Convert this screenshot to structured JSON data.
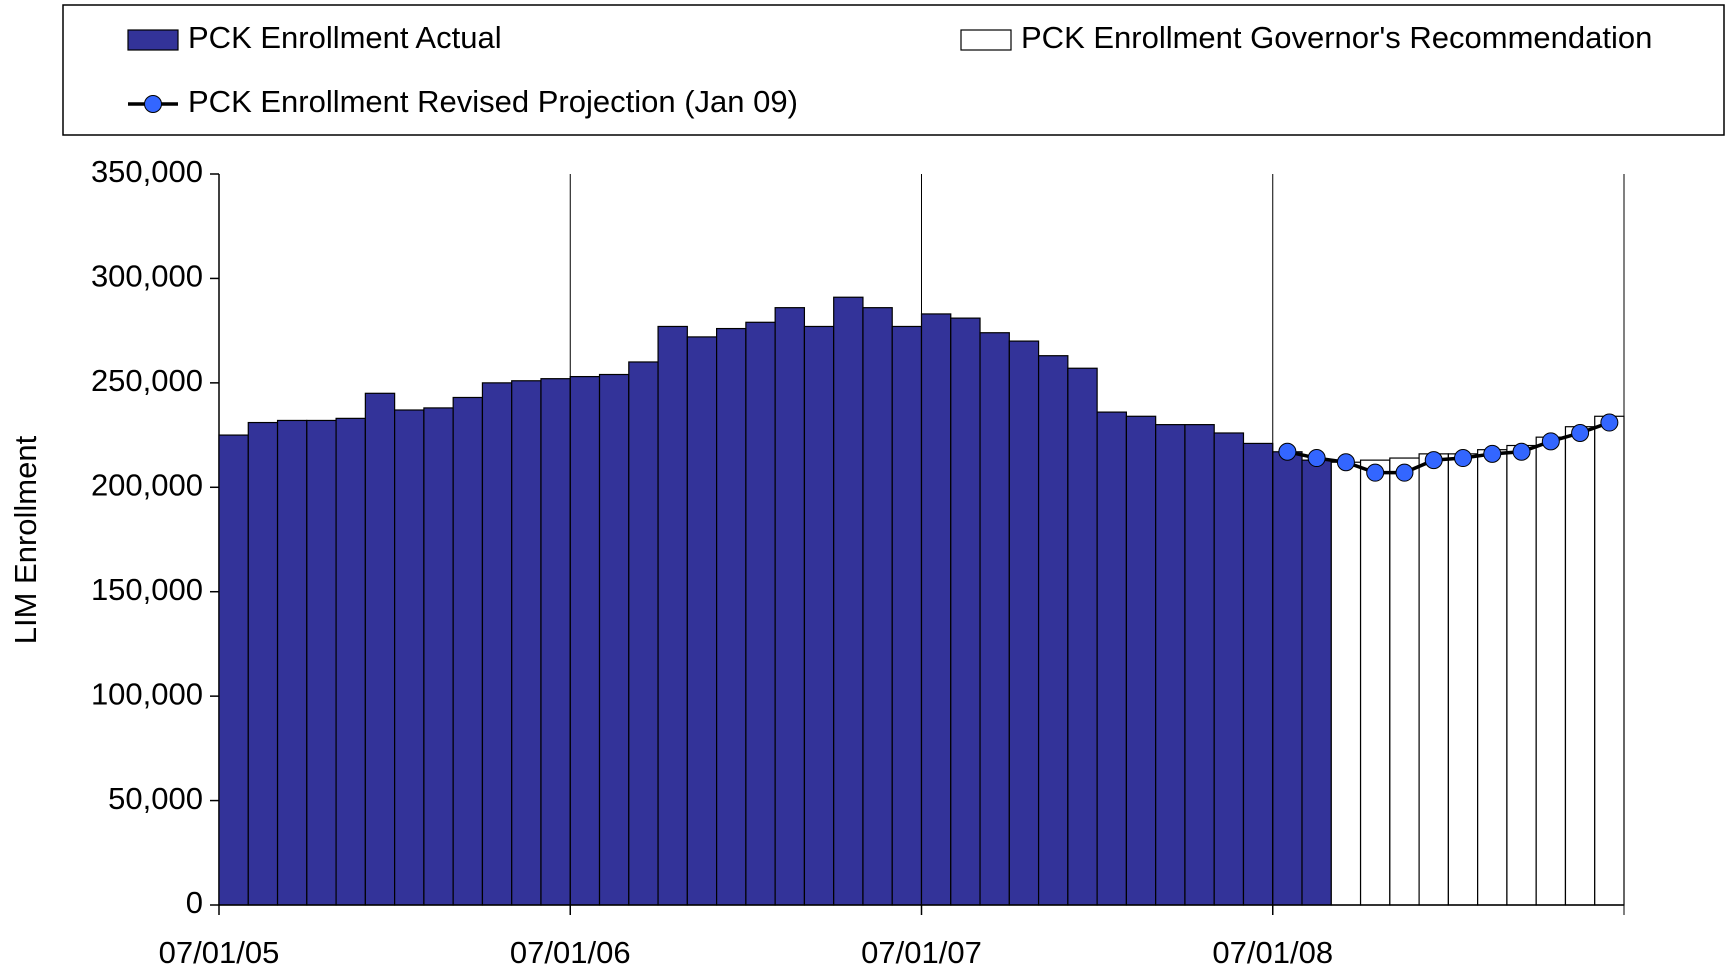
{
  "chart_data": {
    "type": "bar",
    "ylabel": "LIM Enrollment",
    "categories": [
      "07/01/05",
      null,
      null,
      null,
      null,
      null,
      null,
      null,
      null,
      null,
      null,
      null,
      "07/01/06",
      null,
      null,
      null,
      null,
      null,
      null,
      null,
      null,
      null,
      null,
      null,
      "07/01/07",
      null,
      null,
      null,
      null,
      null,
      null,
      null,
      null,
      null,
      null,
      null,
      "07/01/08",
      null,
      null,
      null,
      null,
      null,
      null,
      null,
      null,
      null,
      null,
      null
    ],
    "series": [
      {
        "name": "PCK Enrollment Actual",
        "type": "bar",
        "color": "#333399",
        "values": [
          225000,
          231000,
          232000,
          232000,
          233000,
          245000,
          237000,
          238000,
          243000,
          250000,
          251000,
          252000,
          253000,
          254000,
          260000,
          277000,
          272000,
          276000,
          279000,
          286000,
          277000,
          291000,
          286000,
          277000,
          283000,
          281000,
          274000,
          270000,
          263000,
          257000,
          236000,
          234000,
          230000,
          230000,
          226000,
          221000,
          217000,
          213000,
          null,
          null,
          null,
          null,
          null,
          null,
          null,
          null,
          null,
          null
        ]
      },
      {
        "name": "PCK Enrollment Governor's Recommendation",
        "type": "bar",
        "color": "#ffffff",
        "values": [
          null,
          null,
          null,
          null,
          null,
          null,
          null,
          null,
          null,
          null,
          null,
          null,
          null,
          null,
          null,
          null,
          null,
          null,
          null,
          null,
          null,
          null,
          null,
          null,
          null,
          null,
          null,
          null,
          null,
          null,
          null,
          null,
          null,
          null,
          null,
          null,
          null,
          null,
          212000,
          213000,
          214000,
          216000,
          216000,
          218000,
          220000,
          224000,
          229000,
          234000
        ]
      },
      {
        "name": "PCK Enrollment Revised Projection (Jan 09)",
        "type": "line",
        "color": "#3366ff",
        "values": [
          null,
          null,
          null,
          null,
          null,
          null,
          null,
          null,
          null,
          null,
          null,
          null,
          null,
          null,
          null,
          null,
          null,
          null,
          null,
          null,
          null,
          null,
          null,
          null,
          null,
          null,
          null,
          null,
          null,
          null,
          null,
          null,
          null,
          null,
          null,
          null,
          217000,
          214000,
          212000,
          207000,
          207000,
          213000,
          214000,
          216000,
          217000,
          222000,
          226000,
          231000
        ]
      }
    ],
    "ylim": [
      0,
      350000
    ],
    "yticks": [
      0,
      {
        "value": 50000,
        "label": "50,000"
      },
      {
        "value": 100000,
        "label": "100,000"
      },
      {
        "value": 150000,
        "label": "150,000"
      },
      {
        "value": 200000,
        "label": "200,000"
      },
      {
        "value": 250000,
        "label": "250,000"
      },
      {
        "value": 300000,
        "label": "300,000"
      },
      {
        "value": 350000,
        "label": "350,000"
      }
    ]
  }
}
